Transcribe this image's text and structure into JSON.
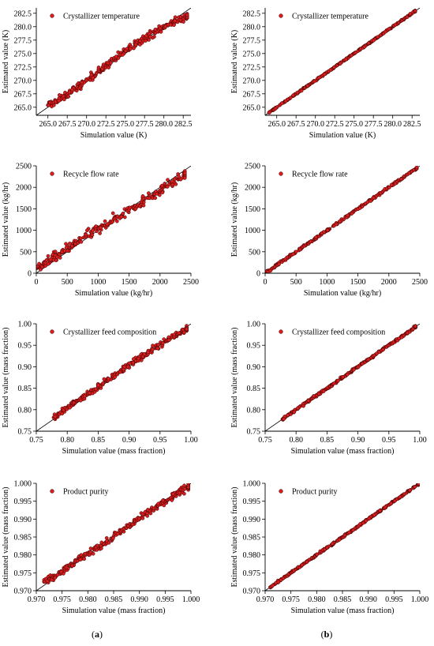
{
  "figure": {
    "panel_labels": [
      {
        "open": "(",
        "letter": "a",
        "close": ")"
      },
      {
        "open": "(",
        "letter": "b",
        "close": ")"
      }
    ]
  },
  "colors": {
    "marker_fill": "#d81e1e",
    "marker_stroke": "#3a0000",
    "axis": "#000000",
    "diagonal": "#000000"
  },
  "chart_data": [
    {
      "type": "scatter",
      "panel": "a",
      "legend": "Crystallizer temperature",
      "xlabel": "Simulation value (K)",
      "ylabel": "Estimated value (K)",
      "xlim": [
        263.5,
        283.5
      ],
      "ylim": [
        263.5,
        283.5
      ],
      "xticks": [
        265.0,
        267.5,
        270.0,
        272.5,
        275.0,
        277.5,
        280.0,
        282.5
      ],
      "yticks": [
        265.0,
        267.5,
        270.0,
        272.5,
        275.0,
        277.5,
        280.0,
        282.5
      ],
      "tick_decimals": 1,
      "x": [
        265.0,
        265.6,
        266.3,
        266.9,
        267.5,
        268.1,
        268.8,
        269.4,
        270.0,
        270.6,
        271.3,
        271.9,
        272.5,
        273.1,
        273.8,
        274.4,
        275.0,
        275.6,
        276.3,
        276.9,
        277.5,
        278.1,
        278.8,
        279.4,
        280.0,
        280.6,
        281.3,
        281.9,
        282.5,
        283.0
      ],
      "y": [
        265.4,
        265.8,
        266.3,
        266.8,
        267.4,
        268.0,
        268.7,
        269.3,
        270.0,
        270.7,
        271.4,
        272.0,
        272.7,
        273.4,
        274.1,
        274.8,
        275.5,
        276.1,
        276.8,
        277.4,
        277.9,
        278.4,
        278.9,
        279.4,
        279.9,
        280.4,
        280.9,
        281.3,
        281.7,
        282.0
      ],
      "spread": 0.35
    },
    {
      "type": "scatter",
      "panel": "b",
      "legend": "Crystallizer temperature",
      "xlabel": "Simulation value (K)",
      "ylabel": "Estimated value (K)",
      "xlim": [
        263.5,
        283.5
      ],
      "ylim": [
        263.5,
        283.5
      ],
      "xticks": [
        265.0,
        267.5,
        270.0,
        272.5,
        275.0,
        277.5,
        280.0,
        282.5
      ],
      "yticks": [
        265.0,
        267.5,
        270.0,
        272.5,
        275.0,
        277.5,
        280.0,
        282.5
      ],
      "tick_decimals": 1,
      "x": [
        264.0,
        264.7,
        265.4,
        266.1,
        266.8,
        267.5,
        268.2,
        268.9,
        269.6,
        270.3,
        271.0,
        271.7,
        272.4,
        273.1,
        273.8,
        274.5,
        275.2,
        275.9,
        276.6,
        277.3,
        278.0,
        278.7,
        279.4,
        280.1,
        280.8,
        281.5,
        282.2,
        282.9
      ],
      "y": [
        264.0,
        264.7,
        265.4,
        266.1,
        266.8,
        267.5,
        268.2,
        268.9,
        269.6,
        270.3,
        271.0,
        271.7,
        272.4,
        273.1,
        273.8,
        274.5,
        275.2,
        275.9,
        276.6,
        277.3,
        278.0,
        278.7,
        279.4,
        280.1,
        280.8,
        281.5,
        282.2,
        282.9
      ],
      "spread": 0.06
    },
    {
      "type": "scatter",
      "panel": "a",
      "legend": "Recycle flow rate",
      "xlabel": "Simulation value (kg/hr)",
      "ylabel": "Estimated value (kg/hr)",
      "xlim": [
        0,
        2500
      ],
      "ylim": [
        0,
        2500
      ],
      "xticks": [
        0,
        500,
        1000,
        1500,
        2000,
        2500
      ],
      "yticks": [
        0,
        500,
        1000,
        1500,
        2000,
        2500
      ],
      "tick_decimals": 0,
      "x": [
        10,
        80,
        150,
        220,
        300,
        380,
        460,
        540,
        620,
        700,
        800,
        900,
        1000,
        1100,
        1200,
        1300,
        1400,
        1500,
        1600,
        1700,
        1800,
        1900,
        2000,
        2100,
        2200,
        2300,
        2400
      ],
      "y": [
        120,
        170,
        240,
        300,
        370,
        440,
        520,
        600,
        680,
        760,
        850,
        940,
        1030,
        1120,
        1210,
        1300,
        1390,
        1480,
        1570,
        1660,
        1750,
        1840,
        1930,
        2020,
        2110,
        2200,
        2300
      ],
      "spread": 60
    },
    {
      "type": "scatter",
      "panel": "b",
      "legend": "Recycle flow rate",
      "xlabel": "Simulation value (kg/hr)",
      "ylabel": "Estimated value (kg/hr)",
      "xlim": [
        0,
        2500
      ],
      "ylim": [
        0,
        2500
      ],
      "xticks": [
        0,
        500,
        1000,
        1500,
        2000,
        2500
      ],
      "yticks": [
        0,
        500,
        1000,
        1500,
        2000,
        2500
      ],
      "tick_decimals": 0,
      "x": [
        20,
        110,
        200,
        300,
        400,
        500,
        600,
        700,
        800,
        900,
        1000,
        1100,
        1200,
        1300,
        1400,
        1500,
        1600,
        1700,
        1800,
        1900,
        2000,
        2100,
        2200,
        2300,
        2400,
        2450
      ],
      "y": [
        20,
        110,
        200,
        300,
        400,
        500,
        600,
        700,
        800,
        900,
        1000,
        1100,
        1200,
        1300,
        1400,
        1500,
        1600,
        1700,
        1800,
        1900,
        2000,
        2100,
        2200,
        2300,
        2400,
        2450
      ],
      "spread": 12
    },
    {
      "type": "scatter",
      "panel": "a",
      "legend": "Crystallizer feed composition",
      "xlabel": "Simulation value (mass fraction)",
      "ylabel": "Estimated value (mass fraction)",
      "xlim": [
        0.75,
        1.0
      ],
      "ylim": [
        0.75,
        1.0
      ],
      "xticks": [
        0.75,
        0.8,
        0.85,
        0.9,
        0.95,
        1.0
      ],
      "yticks": [
        0.75,
        0.8,
        0.85,
        0.9,
        0.95,
        1.0
      ],
      "tick_decimals": 2,
      "x": [
        0.778,
        0.786,
        0.794,
        0.802,
        0.81,
        0.818,
        0.826,
        0.834,
        0.842,
        0.85,
        0.858,
        0.866,
        0.874,
        0.882,
        0.89,
        0.898,
        0.906,
        0.914,
        0.922,
        0.93,
        0.938,
        0.946,
        0.954,
        0.962,
        0.97,
        0.978,
        0.986,
        0.993
      ],
      "y": [
        0.782,
        0.79,
        0.798,
        0.806,
        0.814,
        0.822,
        0.83,
        0.838,
        0.846,
        0.854,
        0.862,
        0.87,
        0.878,
        0.886,
        0.894,
        0.902,
        0.91,
        0.918,
        0.925,
        0.932,
        0.94,
        0.947,
        0.955,
        0.962,
        0.969,
        0.976,
        0.983,
        0.99
      ],
      "spread": 0.004
    },
    {
      "type": "scatter",
      "panel": "b",
      "legend": "Crystallizer feed composition",
      "xlabel": "Simulation value (mass fraction)",
      "ylabel": "Estimated value (mass fraction)",
      "xlim": [
        0.75,
        1.0
      ],
      "ylim": [
        0.75,
        1.0
      ],
      "xticks": [
        0.75,
        0.8,
        0.85,
        0.9,
        0.95,
        1.0
      ],
      "yticks": [
        0.75,
        0.8,
        0.85,
        0.9,
        0.95,
        1.0
      ],
      "tick_decimals": 2,
      "x": [
        0.778,
        0.786,
        0.794,
        0.802,
        0.81,
        0.818,
        0.826,
        0.834,
        0.842,
        0.85,
        0.858,
        0.866,
        0.874,
        0.882,
        0.89,
        0.898,
        0.906,
        0.914,
        0.922,
        0.93,
        0.938,
        0.946,
        0.954,
        0.962,
        0.97,
        0.978,
        0.986,
        0.993
      ],
      "y": [
        0.778,
        0.786,
        0.794,
        0.802,
        0.81,
        0.818,
        0.826,
        0.834,
        0.842,
        0.85,
        0.858,
        0.866,
        0.874,
        0.882,
        0.89,
        0.898,
        0.906,
        0.914,
        0.922,
        0.93,
        0.938,
        0.946,
        0.954,
        0.962,
        0.97,
        0.978,
        0.986,
        0.993
      ],
      "spread": 0.0012
    },
    {
      "type": "scatter",
      "panel": "a",
      "legend": "Product purity",
      "xlabel": "Simulation value (mass fraction)",
      "ylabel": "Estimated value (mass fraction)",
      "xlim": [
        0.97,
        1.0
      ],
      "ylim": [
        0.97,
        1.0
      ],
      "xticks": [
        0.97,
        0.975,
        0.98,
        0.985,
        0.99,
        0.995,
        1.0
      ],
      "yticks": [
        0.97,
        0.975,
        0.98,
        0.985,
        0.99,
        0.995,
        1.0
      ],
      "tick_decimals": 3,
      "x": [
        0.9715,
        0.9725,
        0.9735,
        0.9745,
        0.9755,
        0.9765,
        0.9775,
        0.9785,
        0.9795,
        0.9805,
        0.9815,
        0.9825,
        0.9835,
        0.9845,
        0.9855,
        0.9865,
        0.9875,
        0.9885,
        0.9895,
        0.9905,
        0.9915,
        0.9925,
        0.9935,
        0.9945,
        0.9955,
        0.9965,
        0.9975,
        0.9985,
        0.9995
      ],
      "y": [
        0.9725,
        0.9733,
        0.9742,
        0.9752,
        0.9762,
        0.9772,
        0.9781,
        0.979,
        0.9799,
        0.9808,
        0.9817,
        0.9826,
        0.9836,
        0.9846,
        0.9856,
        0.9866,
        0.9876,
        0.9886,
        0.9896,
        0.9906,
        0.9916,
        0.9926,
        0.9936,
        0.9945,
        0.9954,
        0.9963,
        0.9972,
        0.9982,
        0.9992
      ],
      "spread": 0.0005
    },
    {
      "type": "scatter",
      "panel": "b",
      "legend": "Product purity",
      "xlabel": "Simulation value (mass fraction)",
      "ylabel": "Estimated value (mass fraction)",
      "xlim": [
        0.97,
        1.0
      ],
      "ylim": [
        0.97,
        1.0
      ],
      "xticks": [
        0.97,
        0.975,
        0.98,
        0.985,
        0.99,
        0.995,
        1.0
      ],
      "yticks": [
        0.97,
        0.975,
        0.98,
        0.985,
        0.99,
        0.995,
        1.0
      ],
      "tick_decimals": 3,
      "x": [
        0.971,
        0.972,
        0.973,
        0.974,
        0.975,
        0.976,
        0.977,
        0.978,
        0.979,
        0.98,
        0.981,
        0.982,
        0.983,
        0.984,
        0.985,
        0.986,
        0.987,
        0.988,
        0.989,
        0.99,
        0.991,
        0.992,
        0.993,
        0.994,
        0.995,
        0.996,
        0.997,
        0.998,
        0.999,
        0.9998
      ],
      "y": [
        0.971,
        0.972,
        0.973,
        0.974,
        0.975,
        0.976,
        0.977,
        0.978,
        0.979,
        0.98,
        0.981,
        0.982,
        0.983,
        0.984,
        0.985,
        0.986,
        0.987,
        0.988,
        0.989,
        0.99,
        0.991,
        0.992,
        0.993,
        0.994,
        0.995,
        0.996,
        0.997,
        0.998,
        0.999,
        0.9998
      ],
      "spread": 0.00012
    }
  ]
}
